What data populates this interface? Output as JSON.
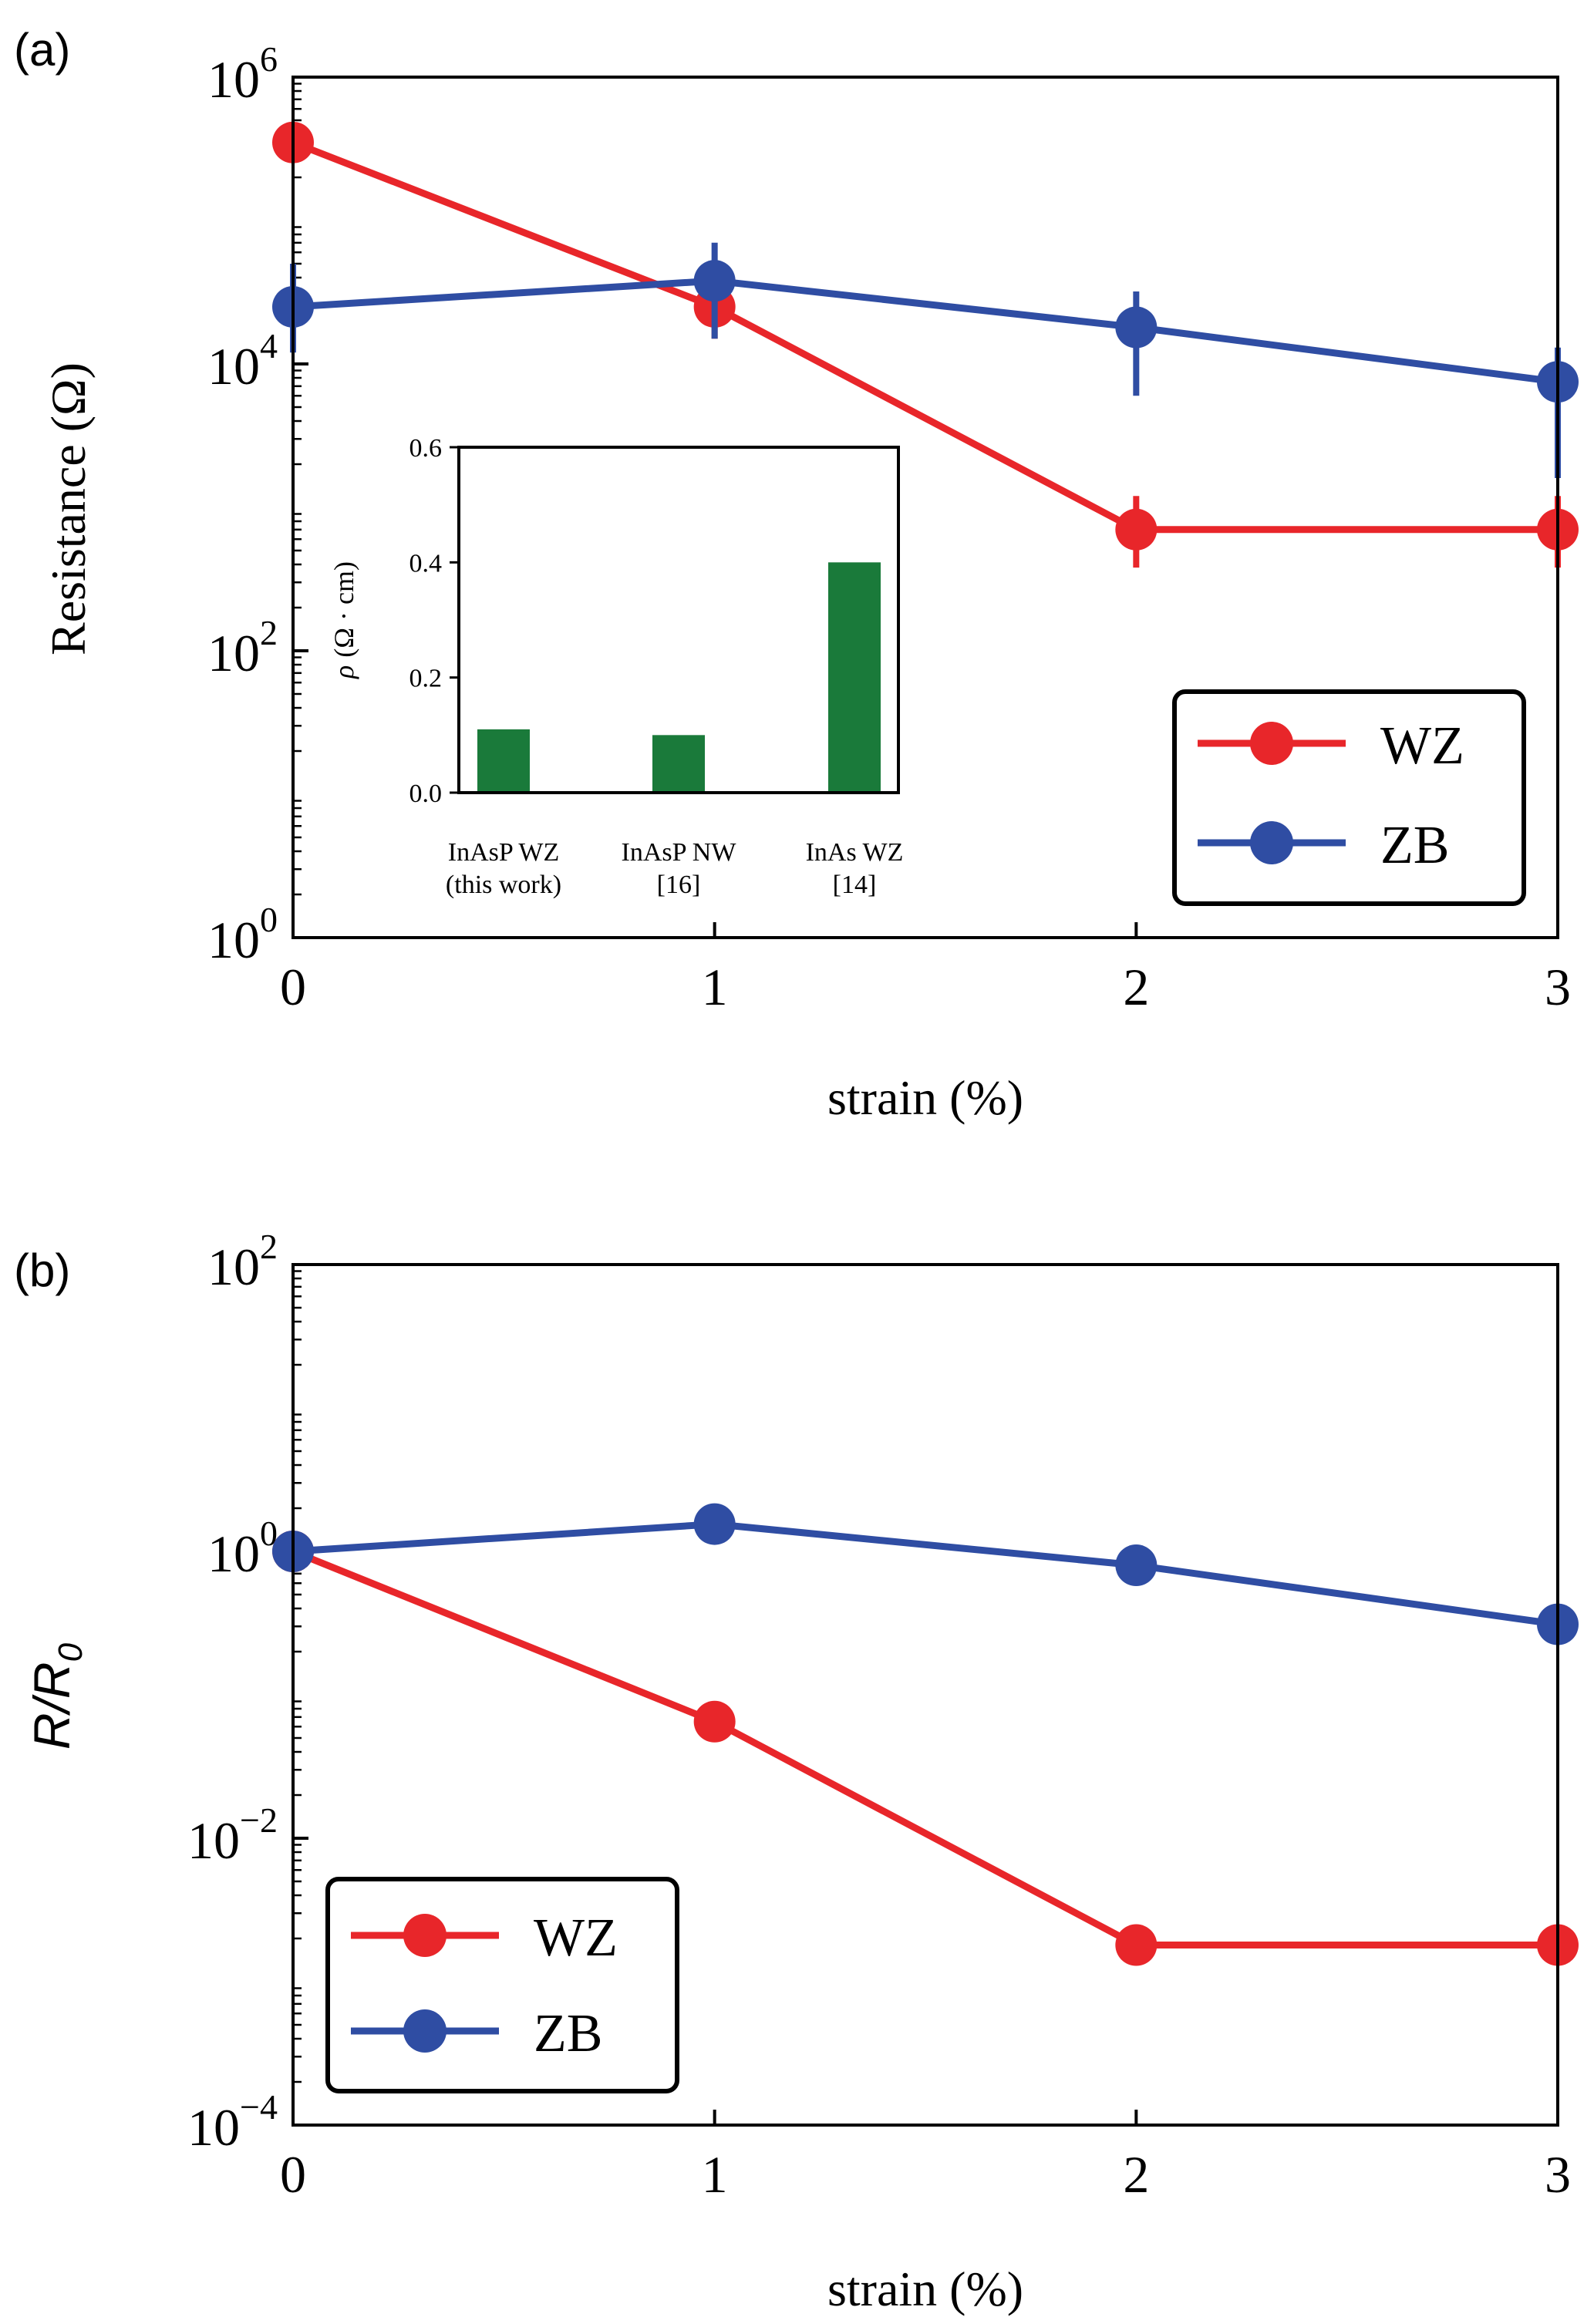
{
  "colors": {
    "wz": "#e8262a",
    "zb": "#2f4da3",
    "bar": "#1a7a3a",
    "axis": "#000000"
  },
  "chart_data": [
    {
      "panel_label": "(a)",
      "type": "line",
      "yscale": "log",
      "xlabel": "strain (%)",
      "ylabel": "Resistance (Ω)",
      "xlim": [
        0,
        3
      ],
      "ylim": [
        1,
        1000000
      ],
      "xticks": [
        "0",
        "1",
        "2",
        "3"
      ],
      "yticks": [
        {
          "base": "10",
          "exp": "0",
          "value": 1
        },
        {
          "base": "10",
          "exp": "2",
          "value": 100
        },
        {
          "base": "10",
          "exp": "4",
          "value": 10000
        },
        {
          "base": "10",
          "exp": "6",
          "value": 1000000
        }
      ],
      "legend": {
        "position": "lower-right",
        "entries": [
          "WZ",
          "ZB"
        ]
      },
      "series": [
        {
          "name": "WZ",
          "x": [
            0,
            1,
            2,
            3
          ],
          "y": [
            350000,
            25000,
            700,
            700
          ],
          "yerr_low": [
            null,
            15000,
            380,
            380
          ],
          "yerr_high": [
            null,
            42000,
            1200,
            1200
          ]
        },
        {
          "name": "ZB",
          "x": [
            0,
            1,
            2,
            3
          ],
          "y": [
            25000,
            38000,
            18000,
            7500
          ],
          "yerr_low": [
            12000,
            15000,
            6000,
            1600
          ],
          "yerr_high": [
            50000,
            70000,
            32000,
            13000
          ]
        }
      ],
      "inset": {
        "type": "bar",
        "ylabel": "ρ (Ω·cm)",
        "ylabel_main": "ρ",
        "ylabel_unit": "(Ω · cm)",
        "ylim": [
          0,
          0.6
        ],
        "yticks": [
          "0.0",
          "0.2",
          "0.4",
          "0.6"
        ],
        "categories": [
          {
            "line1": "InAsP WZ",
            "line2": "(this work)"
          },
          {
            "line1": "InAsP NW",
            "line2": "[16]"
          },
          {
            "line1": "InAs WZ",
            "line2": "[14]"
          }
        ],
        "values": [
          0.11,
          0.1,
          0.4
        ]
      }
    },
    {
      "panel_label": "(b)",
      "type": "line",
      "yscale": "log",
      "xlabel": "strain (%)",
      "ylabel": "R/R0",
      "ylabel_main": "R/R",
      "ylabel_sub": "0",
      "xlim": [
        0,
        3
      ],
      "ylim": [
        0.0001,
        100
      ],
      "xticks": [
        "0",
        "1",
        "2",
        "3"
      ],
      "yticks": [
        {
          "base": "10",
          "exp": "−4",
          "value": 0.0001
        },
        {
          "base": "10",
          "exp": "−2",
          "value": 0.01
        },
        {
          "base": "10",
          "exp": "0",
          "value": 1
        },
        {
          "base": "10",
          "exp": "2",
          "value": 100
        }
      ],
      "legend": {
        "position": "lower-left",
        "entries": [
          "WZ",
          "ZB"
        ]
      },
      "series": [
        {
          "name": "WZ",
          "x": [
            0,
            1,
            2,
            3
          ],
          "y": [
            1,
            0.065,
            0.0018,
            0.0018
          ]
        },
        {
          "name": "ZB",
          "x": [
            0,
            1,
            2,
            3
          ],
          "y": [
            1,
            1.55,
            0.8,
            0.31
          ]
        }
      ]
    }
  ]
}
